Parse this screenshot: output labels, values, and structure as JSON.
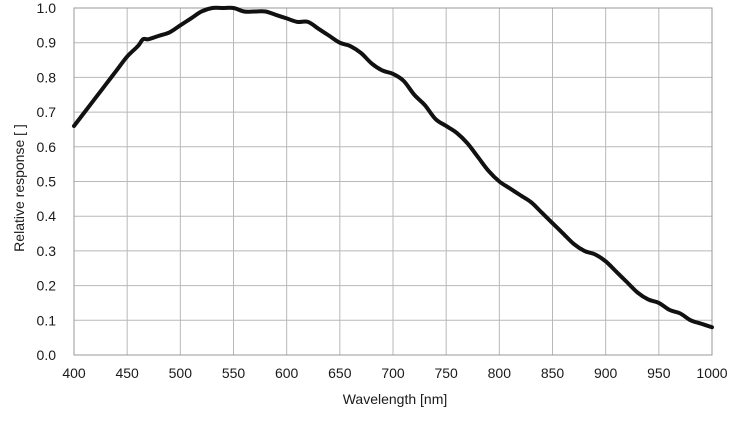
{
  "chart_data": {
    "type": "line",
    "title": "",
    "xlabel": "Wavelength [nm]",
    "ylabel": "Relative response [ ]",
    "xlim": [
      400,
      1000
    ],
    "ylim": [
      0.0,
      1.0
    ],
    "x_ticks": [
      400,
      450,
      500,
      550,
      600,
      650,
      700,
      750,
      800,
      850,
      900,
      950,
      1000
    ],
    "y_ticks": [
      0.0,
      0.1,
      0.2,
      0.3,
      0.4,
      0.5,
      0.6,
      0.7,
      0.8,
      0.9,
      1.0
    ],
    "x_tick_labels": [
      "400",
      "450",
      "500",
      "550",
      "600",
      "650",
      "700",
      "750",
      "800",
      "850",
      "900",
      "950",
      "1000"
    ],
    "y_tick_labels": [
      "0.0",
      "0.1",
      "0.2",
      "0.3",
      "0.4",
      "0.5",
      "0.6",
      "0.7",
      "0.8",
      "0.9",
      "1.0"
    ],
    "grid": true,
    "legend": "none",
    "series": [
      {
        "color": "#111111",
        "x": [
          400,
          410,
          420,
          430,
          440,
          450,
          460,
          465,
          470,
          480,
          490,
          500,
          510,
          520,
          530,
          540,
          550,
          560,
          570,
          580,
          590,
          600,
          610,
          620,
          630,
          640,
          650,
          660,
          670,
          680,
          690,
          700,
          710,
          720,
          730,
          740,
          750,
          760,
          770,
          780,
          790,
          800,
          810,
          820,
          830,
          840,
          850,
          860,
          870,
          880,
          890,
          900,
          910,
          920,
          930,
          940,
          950,
          960,
          970,
          980,
          990,
          1000
        ],
        "y": [
          0.66,
          0.7,
          0.74,
          0.78,
          0.82,
          0.86,
          0.89,
          0.91,
          0.91,
          0.92,
          0.93,
          0.95,
          0.97,
          0.99,
          1.0,
          1.0,
          1.0,
          0.99,
          0.99,
          0.99,
          0.98,
          0.97,
          0.96,
          0.96,
          0.94,
          0.92,
          0.9,
          0.89,
          0.87,
          0.84,
          0.82,
          0.81,
          0.79,
          0.75,
          0.72,
          0.68,
          0.66,
          0.64,
          0.61,
          0.57,
          0.53,
          0.5,
          0.48,
          0.46,
          0.44,
          0.41,
          0.38,
          0.35,
          0.32,
          0.3,
          0.29,
          0.27,
          0.24,
          0.21,
          0.18,
          0.16,
          0.15,
          0.13,
          0.12,
          0.1,
          0.09,
          0.08
        ]
      }
    ]
  }
}
